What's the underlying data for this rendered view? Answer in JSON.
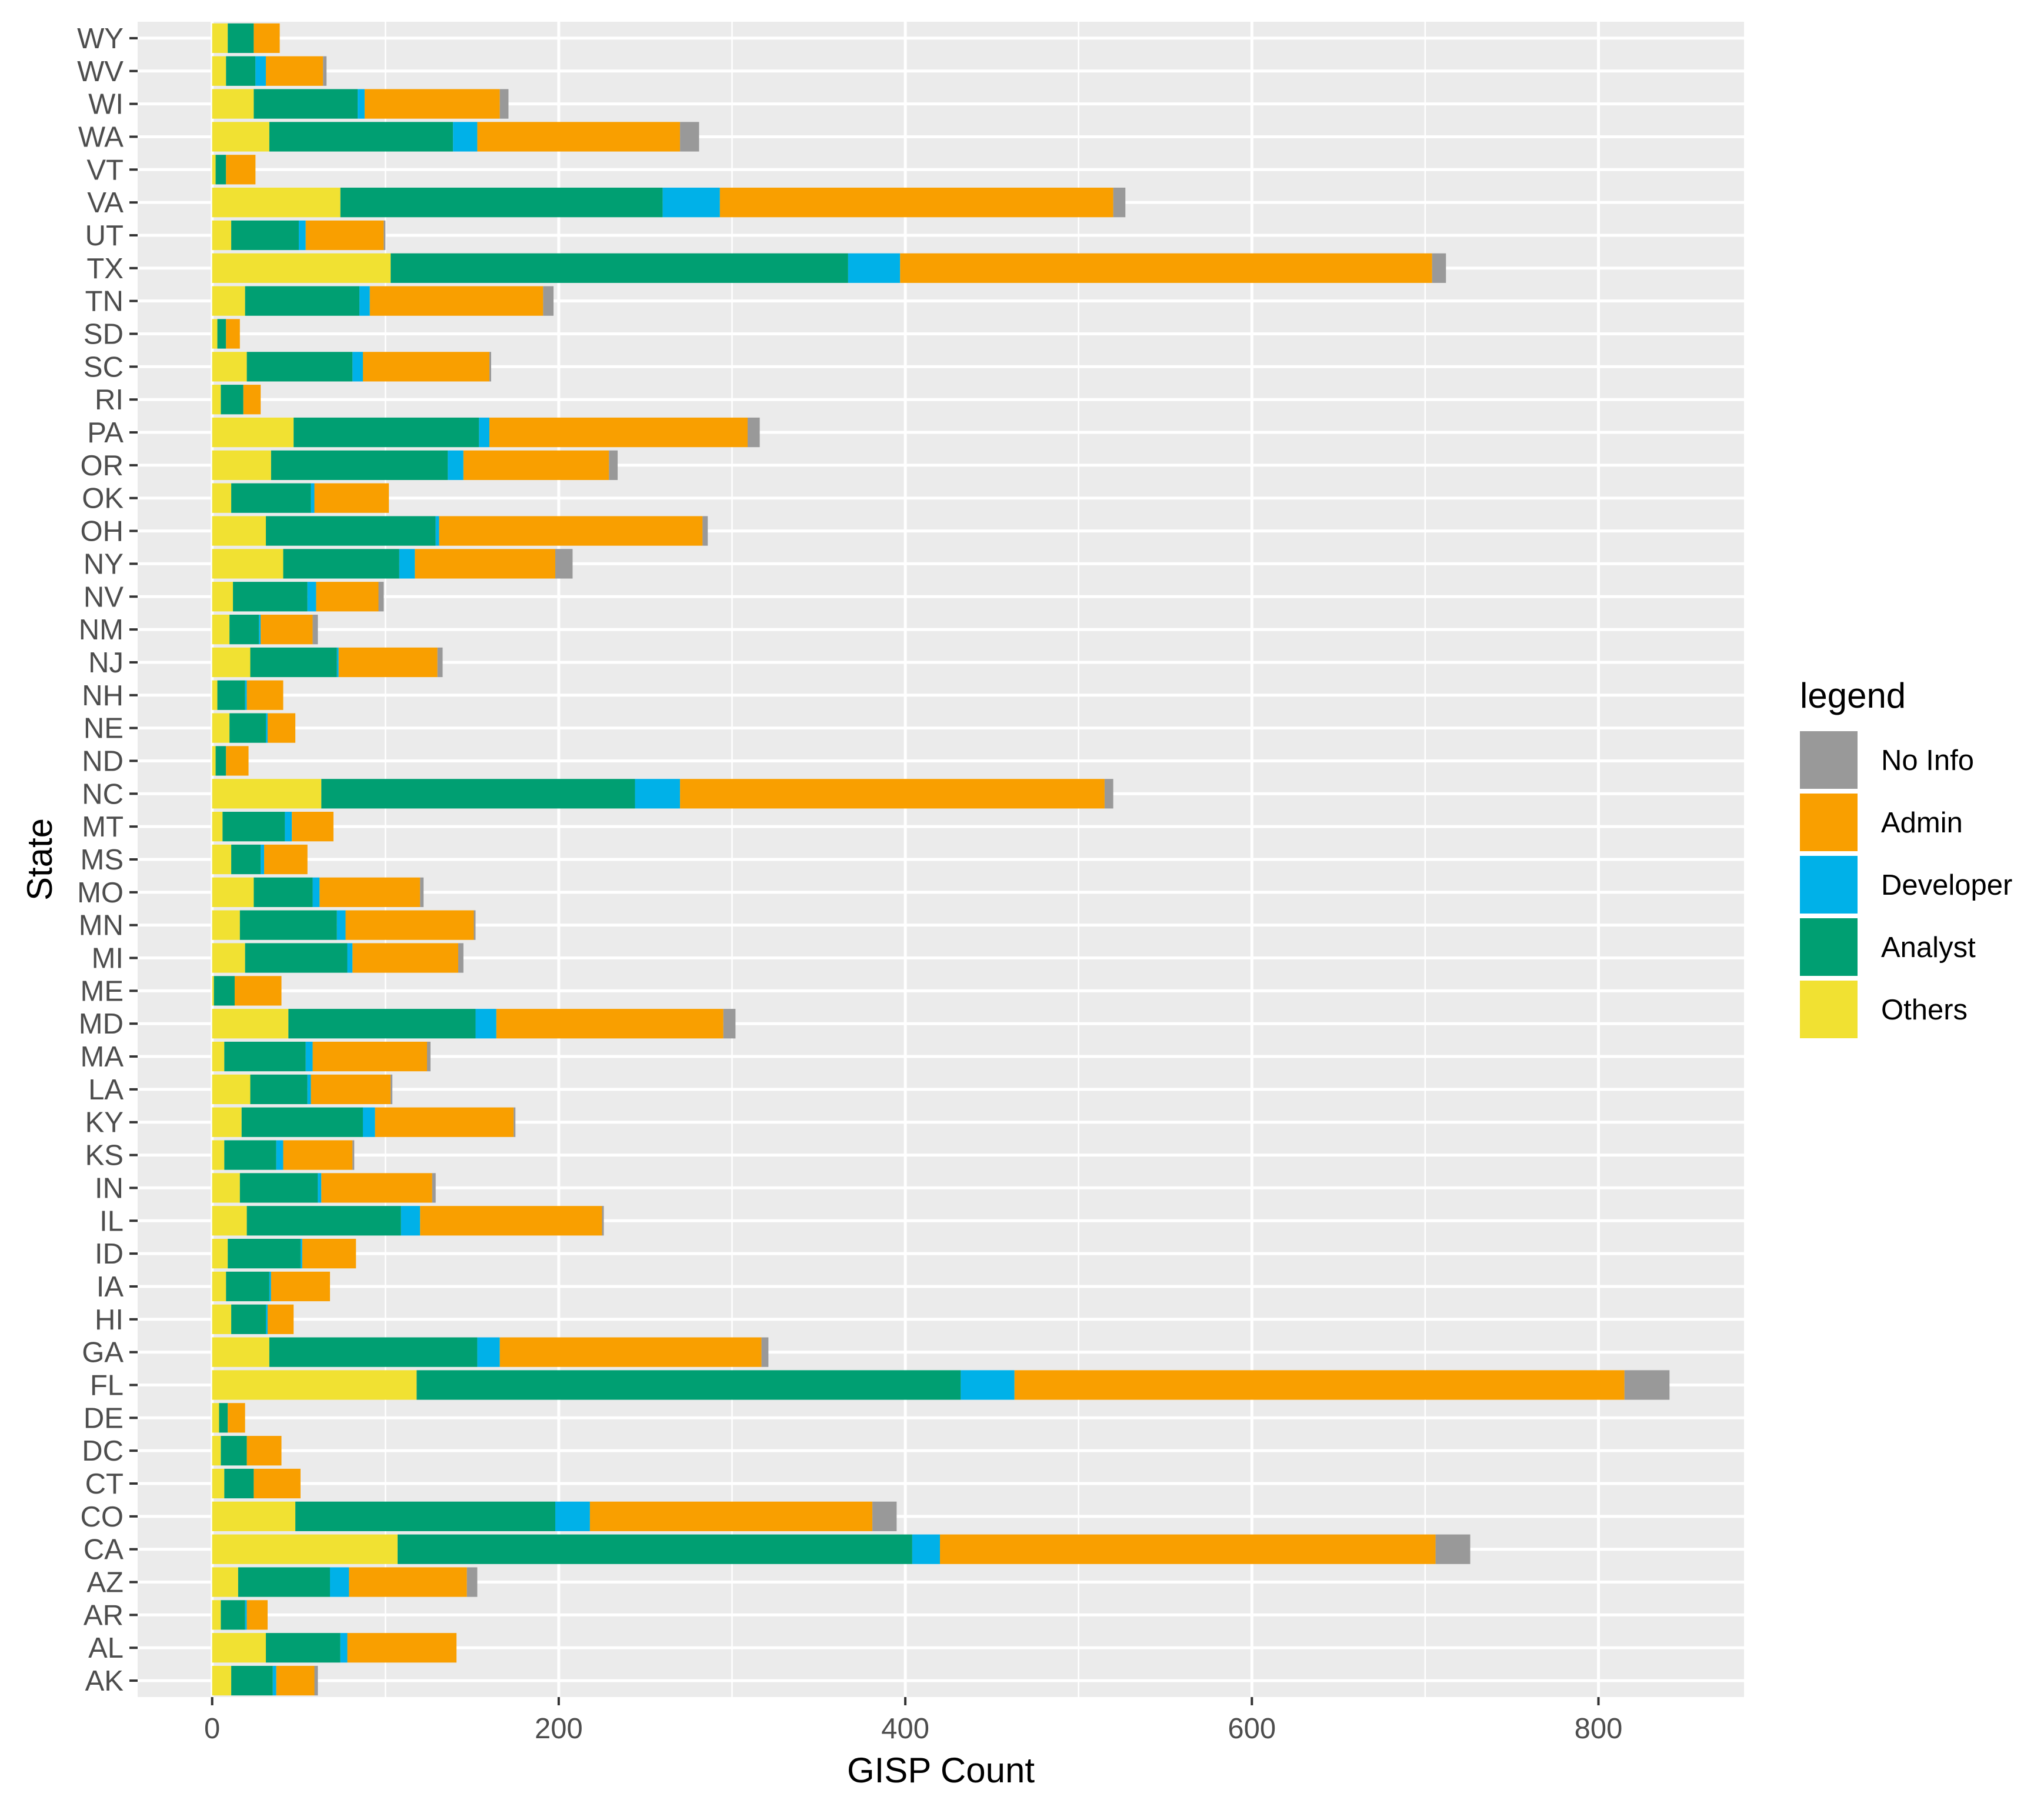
{
  "chart_data": {
    "type": "bar",
    "orientation": "horizontal",
    "stacked": true,
    "xlabel": "GISP Count",
    "ylabel": "State",
    "xlim": [
      -43,
      884
    ],
    "xticks": [
      0,
      200,
      400,
      600,
      800
    ],
    "xtick_labels": [
      "0",
      "200",
      "400",
      "600",
      "800"
    ],
    "grid": true,
    "legend": {
      "title": "legend",
      "position": "right",
      "items": [
        {
          "key": "no_info",
          "label": "No Info",
          "color": "#999999"
        },
        {
          "key": "admin",
          "label": "Admin",
          "color": "#f99f00"
        },
        {
          "key": "developer",
          "label": "Developer",
          "color": "#00b1e8"
        },
        {
          "key": "analyst",
          "label": "Analyst",
          "color": "#009f72"
        },
        {
          "key": "others",
          "label": "Others",
          "color": "#f1e132"
        }
      ]
    },
    "stack_order": [
      "others",
      "analyst",
      "developer",
      "admin",
      "no_info"
    ],
    "categories": [
      "WY",
      "WV",
      "WI",
      "WA",
      "VT",
      "VA",
      "UT",
      "TX",
      "TN",
      "SD",
      "SC",
      "RI",
      "PA",
      "OR",
      "OK",
      "OH",
      "NY",
      "NV",
      "NM",
      "NJ",
      "NH",
      "NE",
      "ND",
      "NC",
      "MT",
      "MS",
      "MO",
      "MN",
      "MI",
      "ME",
      "MD",
      "MA",
      "LA",
      "KY",
      "KS",
      "IN",
      "IL",
      "ID",
      "IA",
      "HI",
      "GA",
      "FL",
      "DE",
      "DC",
      "CT",
      "CO",
      "CA",
      "AZ",
      "AR",
      "AL",
      "AK"
    ],
    "series": [
      {
        "name": "Others",
        "key": "others",
        "values": [
          9,
          8,
          24,
          33,
          2,
          74,
          11,
          103,
          19,
          3,
          20,
          5,
          47,
          34,
          11,
          31,
          41,
          12,
          10,
          22,
          3,
          10,
          2,
          63,
          6,
          11,
          24,
          16,
          19,
          1,
          44,
          7,
          22,
          17,
          7,
          16,
          20,
          9,
          8,
          11,
          33,
          118,
          4,
          5,
          7,
          48,
          107,
          15,
          5,
          31,
          11
        ]
      },
      {
        "name": "Analyst",
        "key": "analyst",
        "values": [
          15,
          17,
          60,
          106,
          6,
          186,
          39,
          264,
          66,
          5,
          61,
          13,
          107,
          102,
          46,
          98,
          67,
          43,
          17,
          50,
          16,
          21,
          6,
          181,
          36,
          17,
          34,
          56,
          59,
          12,
          108,
          47,
          33,
          70,
          30,
          45,
          89,
          42,
          25,
          20,
          120,
          314,
          5,
          15,
          17,
          150,
          297,
          53,
          14,
          43,
          24
        ]
      },
      {
        "name": "Developer",
        "key": "developer",
        "values": [
          0,
          6,
          4,
          14,
          0,
          33,
          4,
          30,
          6,
          0,
          6,
          0,
          6,
          9,
          2,
          2,
          9,
          5,
          1,
          1,
          1,
          1,
          0,
          26,
          4,
          2,
          4,
          5,
          3,
          0,
          12,
          4,
          2,
          7,
          4,
          2,
          11,
          1,
          1,
          1,
          13,
          31,
          0,
          0,
          0,
          20,
          16,
          11,
          1,
          4,
          2
        ]
      },
      {
        "name": "Admin",
        "key": "admin",
        "values": [
          15,
          33,
          78,
          117,
          17,
          227,
          45,
          307,
          100,
          8,
          73,
          10,
          149,
          84,
          43,
          152,
          81,
          36,
          30,
          57,
          21,
          16,
          13,
          245,
          24,
          25,
          58,
          74,
          61,
          27,
          131,
          66,
          46,
          80,
          40,
          64,
          105,
          31,
          34,
          15,
          151,
          352,
          10,
          20,
          27,
          163,
          286,
          68,
          12,
          63,
          22
        ]
      },
      {
        "name": "No Info",
        "key": "no_info",
        "values": [
          0,
          2,
          5,
          11,
          0,
          7,
          1,
          8,
          6,
          0,
          1,
          0,
          7,
          5,
          0,
          3,
          10,
          3,
          3,
          3,
          0,
          0,
          0,
          5,
          0,
          0,
          2,
          1,
          3,
          0,
          7,
          2,
          1,
          1,
          1,
          2,
          1,
          0,
          0,
          0,
          4,
          26,
          0,
          0,
          0,
          14,
          20,
          6,
          0,
          0,
          2
        ]
      }
    ]
  }
}
